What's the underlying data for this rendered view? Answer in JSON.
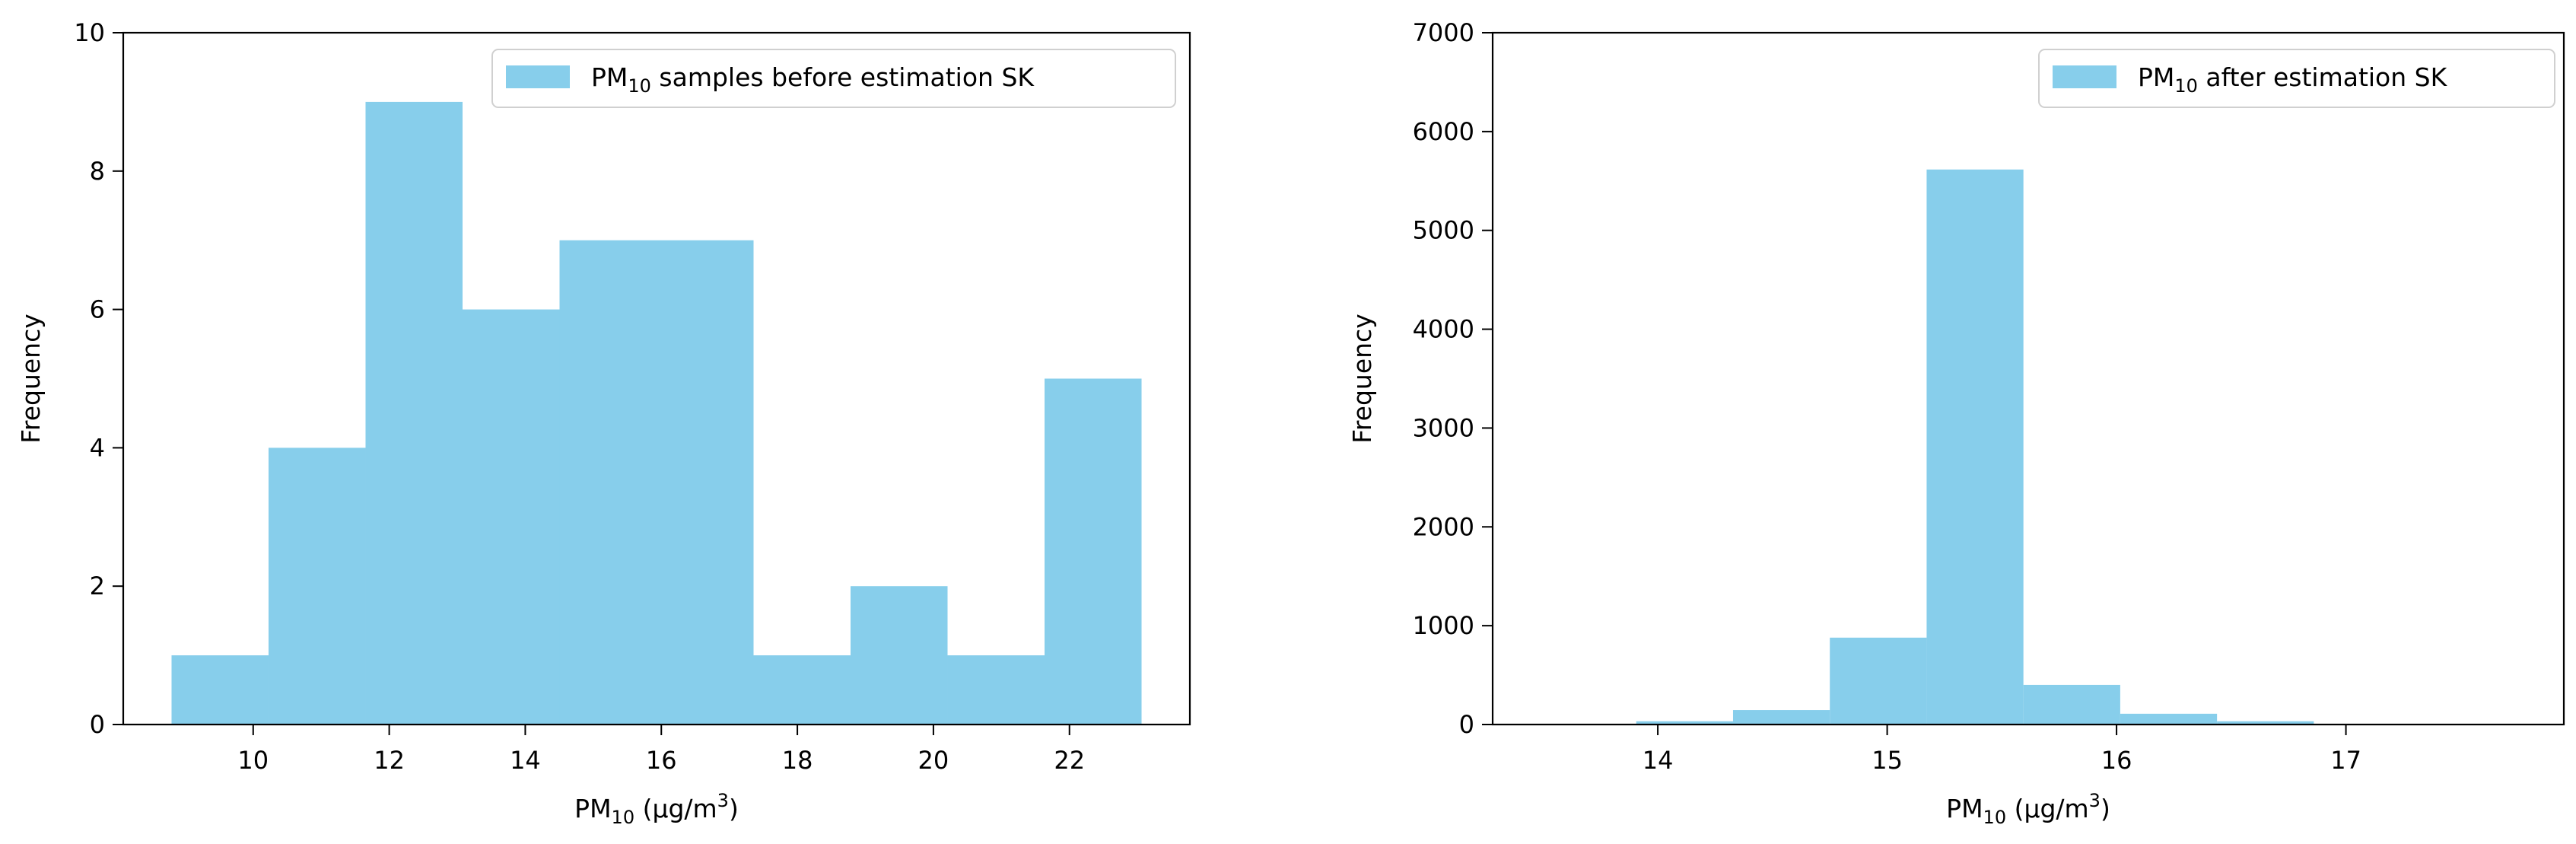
{
  "chart_data": [
    {
      "type": "bar",
      "subtype": "histogram",
      "bin_edges": [
        8.8,
        10.226,
        11.652,
        13.078,
        14.504,
        15.93,
        17.356,
        18.782,
        20.208,
        21.634,
        23.06
      ],
      "values": [
        1,
        4,
        9,
        6,
        7,
        7,
        1,
        2,
        1,
        5
      ],
      "color": "#87ceeb",
      "xlabel_main": "PM",
      "xlabel_sub": "10",
      "xlabel_rest": " (µg/m",
      "xlabel_sup": "3",
      "xlabel_end": ")",
      "ylabel": "Frequency",
      "xlim": [
        8.09,
        23.77
      ],
      "ylim": [
        0,
        10
      ],
      "xticks": [
        "10",
        "12",
        "14",
        "16",
        "18",
        "20",
        "22"
      ],
      "yticks": [
        "0",
        "2",
        "4",
        "6",
        "8",
        "10"
      ],
      "legend": {
        "main": "PM",
        "sub": "10",
        "rest": " samples before estimation SK",
        "placement": "top-right"
      },
      "grid": false
    },
    {
      "type": "bar",
      "subtype": "histogram",
      "bin_edges": [
        13.906,
        14.328,
        14.75,
        15.172,
        15.594,
        16.016,
        16.438,
        16.86
      ],
      "values": [
        33,
        146,
        879,
        5616,
        401,
        109,
        33
      ],
      "color": "#87ceeb",
      "xlabel_main": "PM",
      "xlabel_sub": "10",
      "xlabel_rest": " (µg/m",
      "xlabel_sup": "3",
      "xlabel_end": ")",
      "ylabel": "Frequency",
      "xlim": [
        13.28,
        17.95
      ],
      "ylim": [
        0,
        7000
      ],
      "xticks": [
        "14",
        "15",
        "16",
        "17"
      ],
      "yticks": [
        "0",
        "1000",
        "2000",
        "3000",
        "4000",
        "5000",
        "6000",
        "7000"
      ],
      "legend": {
        "main": "PM",
        "sub": "10",
        "rest": " after estimation SK",
        "placement": "top-right"
      },
      "grid": false
    }
  ]
}
